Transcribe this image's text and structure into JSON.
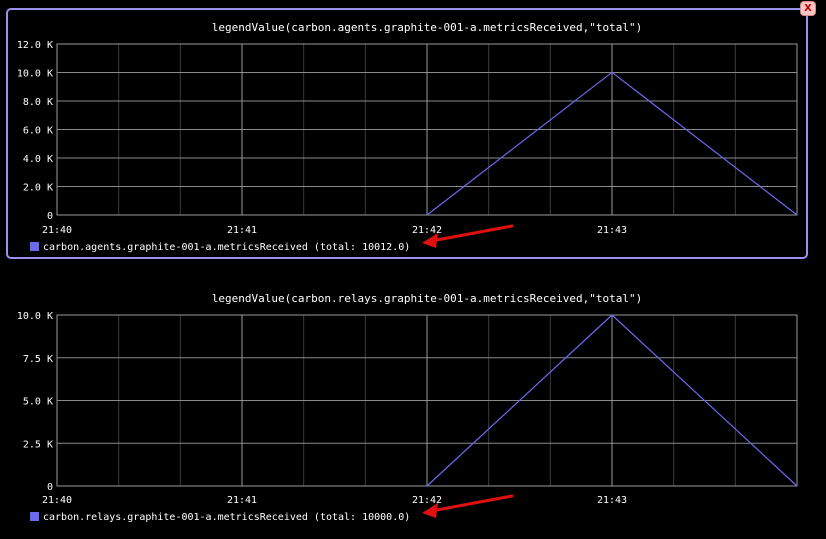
{
  "panel": {
    "close_label": "X"
  },
  "chart_data": [
    {
      "type": "line",
      "title": "legendValue(carbon.agents.graphite-001-a.metricsReceived,\"total\")",
      "x_ticks": [
        "21:40",
        "21:41",
        "21:42",
        "21:43"
      ],
      "y_ticks": [
        "0",
        "2.0 K",
        "4.0 K",
        "6.0 K",
        "8.0 K",
        "10.0 K",
        "12.0 K"
      ],
      "ylim": [
        0,
        12000
      ],
      "series": [
        {
          "name": "carbon.agents.graphite-001-a.metricsReceived (total: 10012.0)",
          "color": "#6a6af0",
          "x": [
            "21:42",
            "21:43",
            "21:44"
          ],
          "values": [
            0,
            10012,
            0
          ]
        }
      ],
      "selected": true,
      "annotation": "red arrow pointing to legend total"
    },
    {
      "type": "line",
      "title": "legendValue(carbon.relays.graphite-001-a.metricsReceived,\"total\")",
      "x_ticks": [
        "21:40",
        "21:41",
        "21:42",
        "21:43"
      ],
      "y_ticks": [
        "0",
        "2.5 K",
        "5.0 K",
        "7.5 K",
        "10.0 K"
      ],
      "ylim": [
        0,
        10000
      ],
      "series": [
        {
          "name": "carbon.relays.graphite-001-a.metricsReceived (total: 10000.0)",
          "color": "#6a6af0",
          "x": [
            "21:42",
            "21:43",
            "21:44"
          ],
          "values": [
            0,
            10000,
            0
          ]
        }
      ],
      "selected": false,
      "annotation": "red arrow pointing to legend total"
    }
  ]
}
